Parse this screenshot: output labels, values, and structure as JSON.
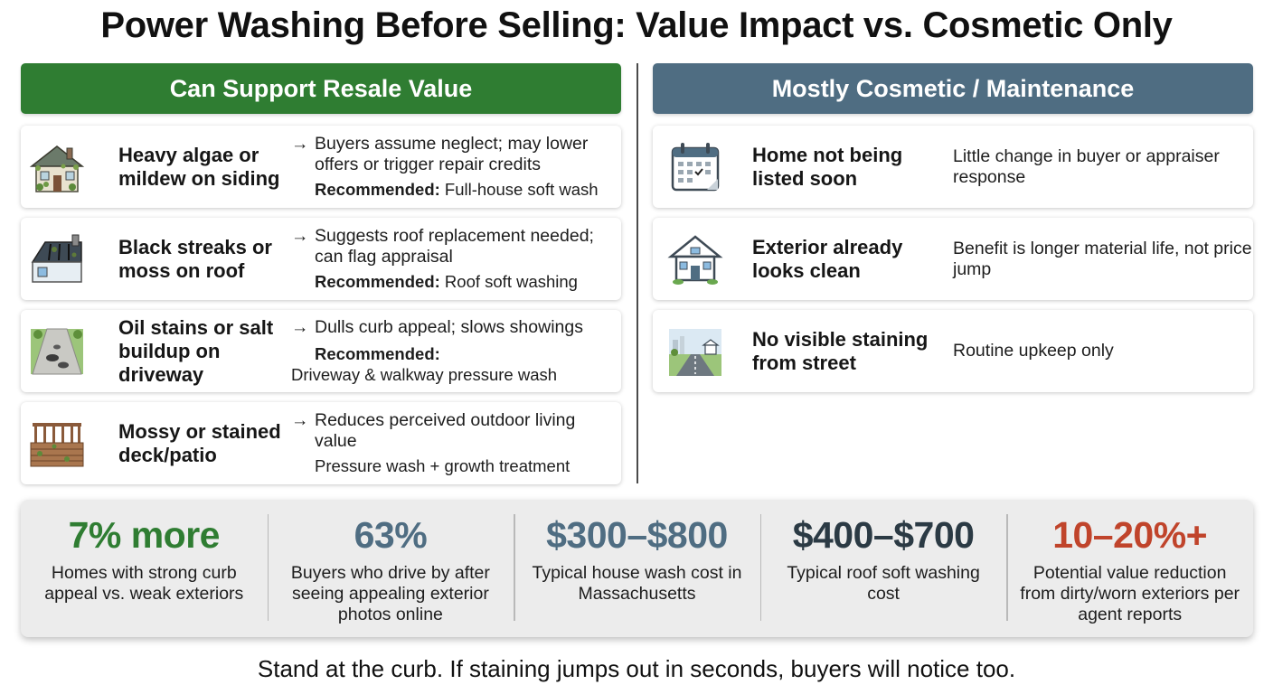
{
  "title": "Power Washing Before Selling: Value Impact vs. Cosmetic Only",
  "left": {
    "header": "Can Support Resale Value",
    "items": [
      {
        "condition": "Heavy algae or mildew on siding",
        "impact": "Buyers assume neglect; may lower offers or trigger repair credits",
        "rec_label": "Recommended:",
        "rec_text": " Full-house soft wash",
        "icon": "house-algae-icon"
      },
      {
        "condition": "Black streaks or moss on roof",
        "impact": "Suggests roof replacement needed; can flag appraisal",
        "rec_label": "Recommended:",
        "rec_text": " Roof soft washing",
        "icon": "roof-streaks-icon"
      },
      {
        "condition": "Oil stains or salt buildup on driveway",
        "impact": "Dulls curb appeal; slows showings",
        "rec_label": "Recommended:",
        "rec_text": "Driveway & walkway pressure wash",
        "icon": "driveway-stain-icon"
      },
      {
        "condition": "Mossy or stained deck/patio",
        "impact": "Reduces perceived outdoor living value",
        "rec_label": "",
        "rec_text": "Pressure wash + growth treatment",
        "icon": "deck-icon"
      }
    ],
    "arrow": "→"
  },
  "right": {
    "header": "Mostly Cosmetic / Maintenance",
    "items": [
      {
        "condition": "Home not being listed soon",
        "note": "Little change in buyer or appraiser response",
        "icon": "calendar-icon"
      },
      {
        "condition": "Exterior already looks clean",
        "note": "Benefit is longer material life, not price jump",
        "icon": "clean-house-icon"
      },
      {
        "condition": "No visible staining from street",
        "note": "Routine upkeep only",
        "icon": "street-view-icon"
      }
    ]
  },
  "stats": [
    {
      "value": "7% more",
      "label": "Homes with strong curb appeal vs. weak exteriors",
      "color": "#2f7d32"
    },
    {
      "value": "63%",
      "label": "Buyers who drive by after seeing appealing exterior photos online",
      "color": "#4f6d82"
    },
    {
      "value": "$300–$800",
      "label": "Typical house wash cost in Massachusetts",
      "color": "#4f6d82"
    },
    {
      "value": "$400–$700",
      "label": "Typical roof soft washing cost",
      "color": "#2b3a44"
    },
    {
      "value": "10–20%+",
      "label": "Potential value reduction from dirty/worn exteriors per agent reports",
      "color": "#c0442b"
    }
  ],
  "footer": "Stand at the curb. If staining jumps out in seconds, buyers will notice too.",
  "colors": {
    "green": "#2f7d32",
    "slate": "#4f6d82",
    "red": "#c0442b"
  }
}
